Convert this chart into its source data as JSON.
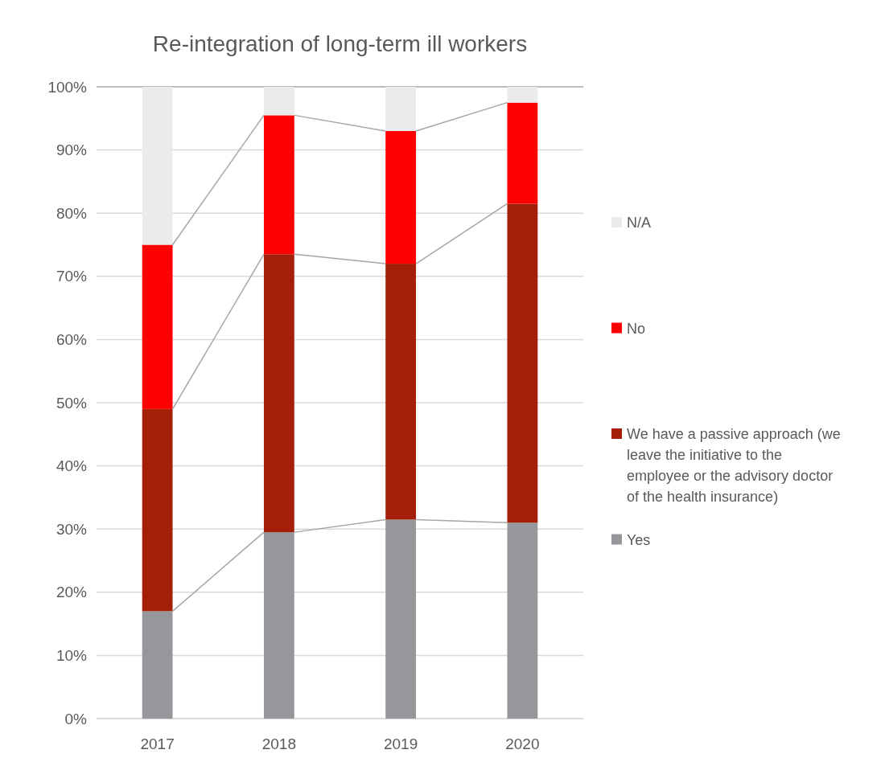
{
  "chart_data": {
    "type": "bar",
    "title": "Re-integration of long-term ill workers",
    "categories": [
      "2017",
      "2018",
      "2019",
      "2020"
    ],
    "stacked": true,
    "series": [
      {
        "name": "Yes",
        "color": "#96979b",
        "values": [
          17,
          29.5,
          31.5,
          31
        ]
      },
      {
        "name": "We have a passive approach (we leave the initiative to the employee or the advisory doctor of the health insurance)",
        "color": "#a51f08",
        "values": [
          32,
          44,
          40.5,
          50.5
        ]
      },
      {
        "name": "No",
        "color": "#ff0000",
        "values": [
          26,
          22,
          21,
          16
        ]
      },
      {
        "name": "N/A",
        "color": "#ebebeb",
        "values": [
          25,
          4.5,
          7,
          2.5
        ]
      }
    ],
    "ylim": [
      0,
      100
    ],
    "yticks": [
      {
        "value": 0,
        "label": "0%"
      },
      {
        "value": 10,
        "label": "10%"
      },
      {
        "value": 20,
        "label": "20%"
      },
      {
        "value": 30,
        "label": "30%"
      },
      {
        "value": 40,
        "label": "40%"
      },
      {
        "value": 50,
        "label": "50%"
      },
      {
        "value": 60,
        "label": "60%"
      },
      {
        "value": 70,
        "label": "70%"
      },
      {
        "value": 80,
        "label": "80%"
      },
      {
        "value": 90,
        "label": "90%"
      },
      {
        "value": 100,
        "label": "100%"
      }
    ],
    "grid": "y",
    "legend": "right"
  }
}
